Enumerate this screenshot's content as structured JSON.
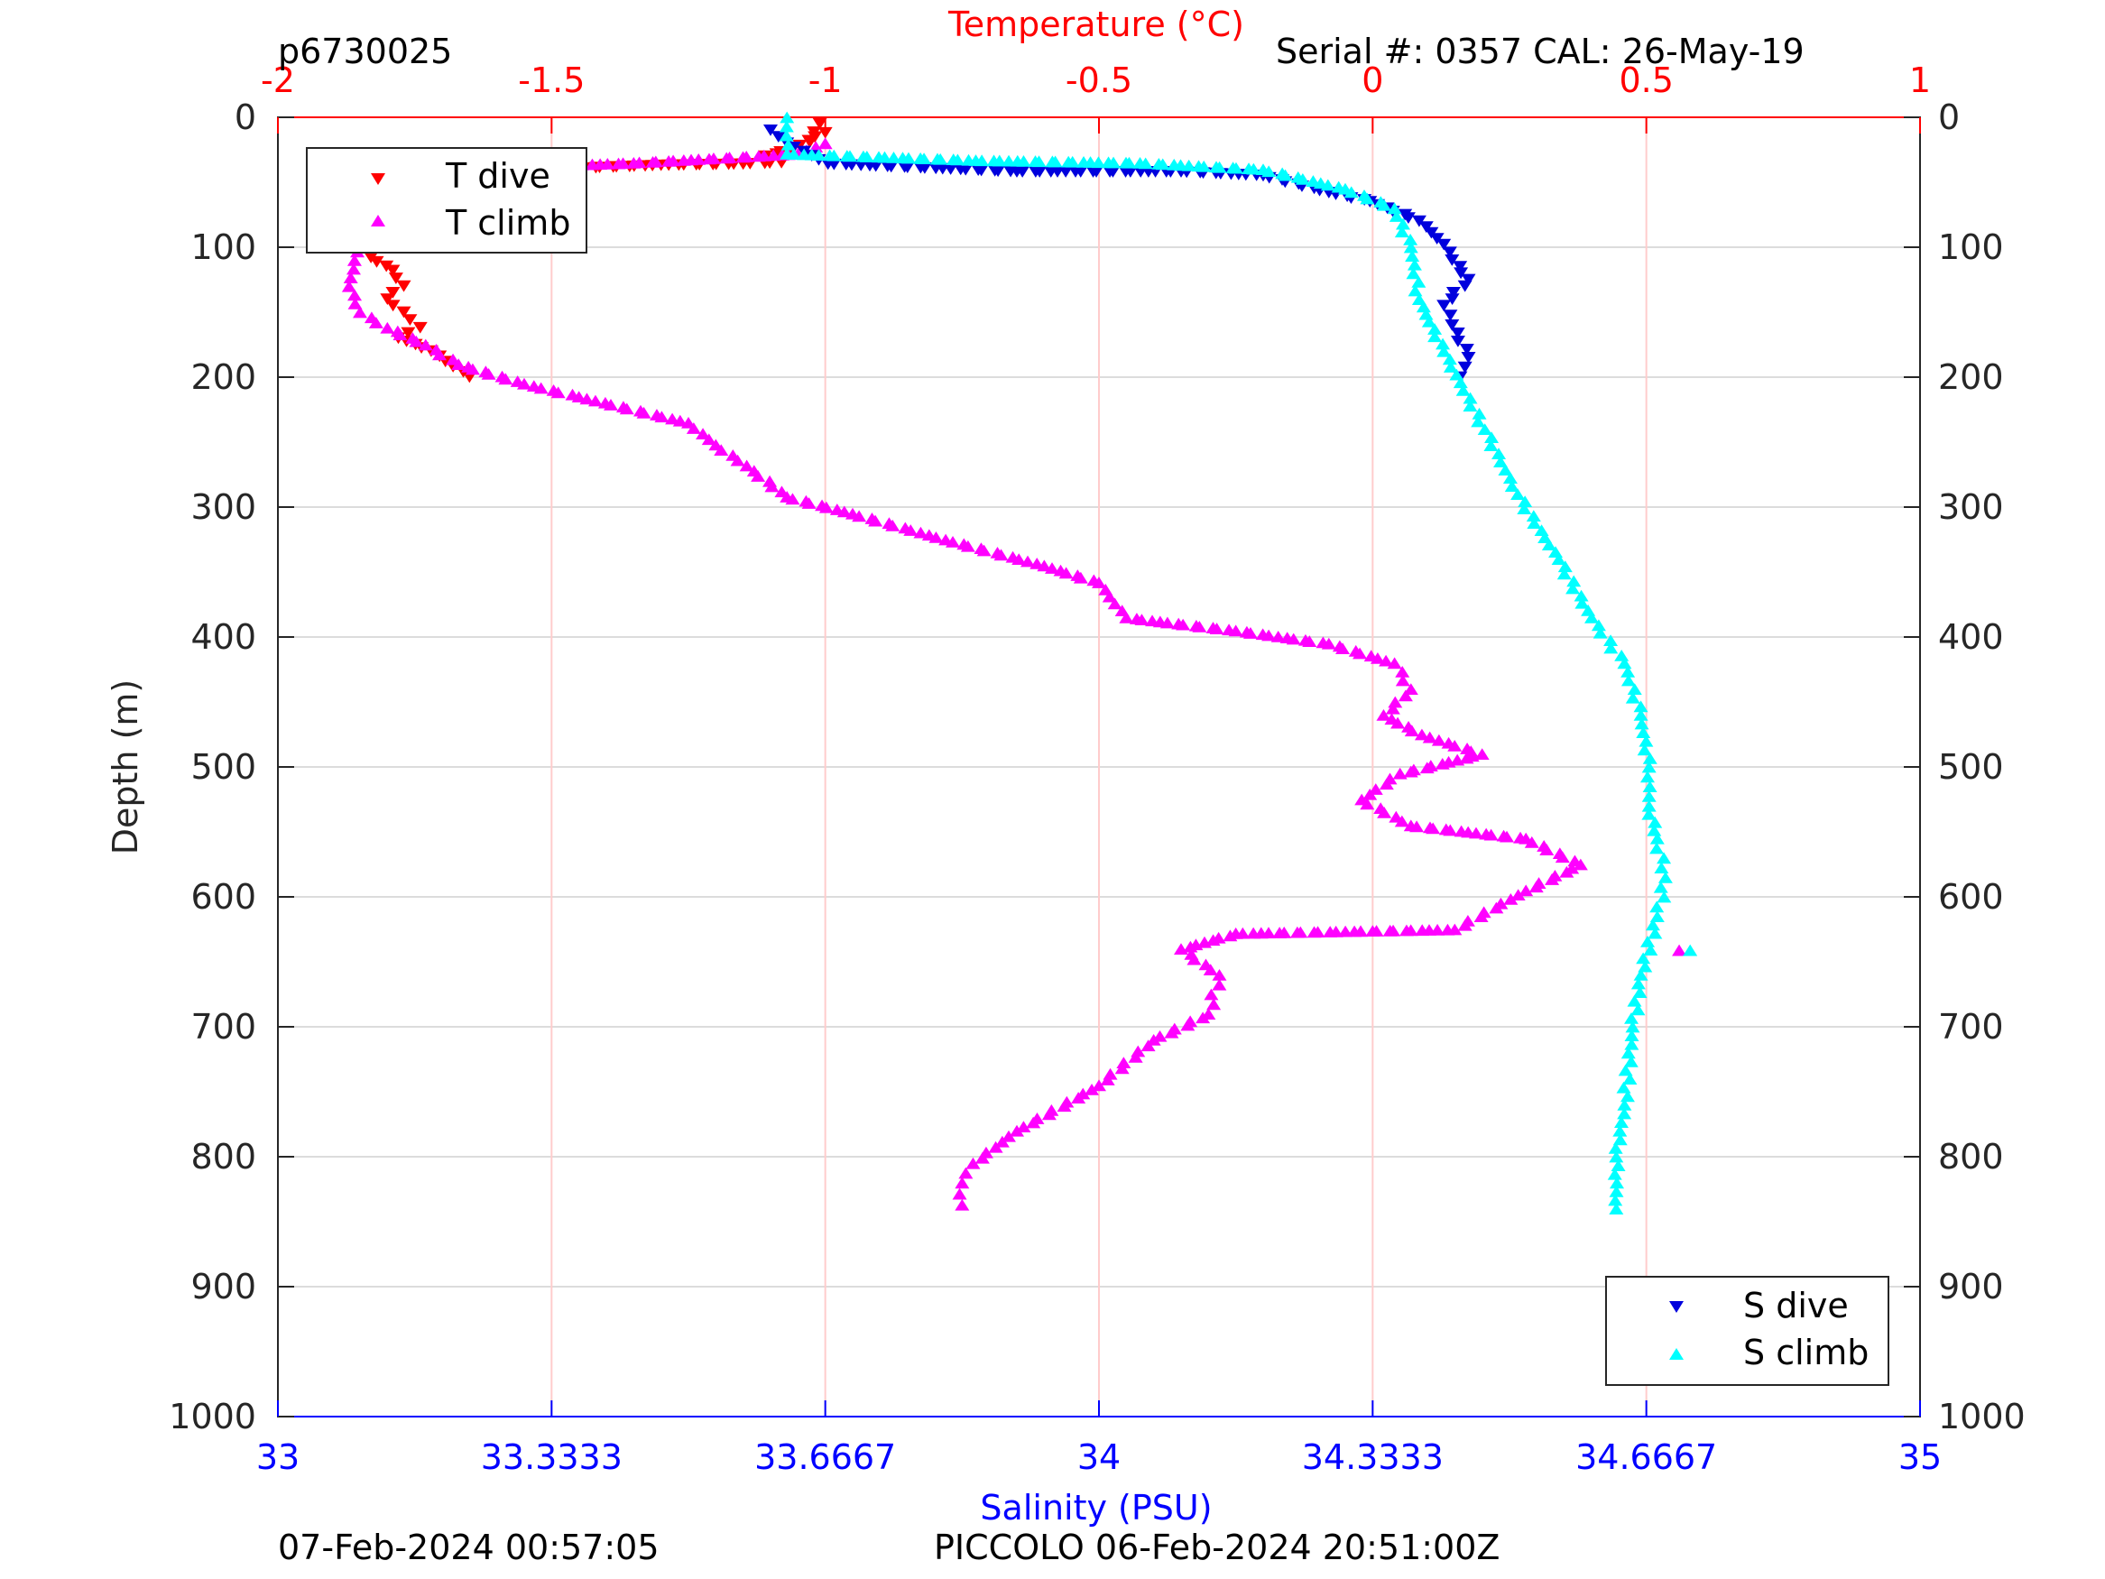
{
  "header": {
    "profile_id": "p6730025",
    "serial": "Serial #: 0357  CAL: 26-May-19"
  },
  "footer": {
    "left": "07-Feb-2024 00:57:05",
    "right": "PICCOLO 06-Feb-2024 20:51:00Z"
  },
  "legend_temperature": {
    "dive": "T dive",
    "climb": "T climb"
  },
  "legend_salinity": {
    "dive": "S dive",
    "climb": "S climb"
  },
  "colors": {
    "temperature_axis": "#ff0000",
    "salinity_axis": "#0000ff",
    "t_dive": "#ff0000",
    "t_climb": "#ff00ff",
    "s_dive": "#0000dd",
    "s_climb": "#00ffff"
  },
  "chart_data": {
    "type": "scatter",
    "title": "",
    "grid": true,
    "y_axis": {
      "label": "Depth (m)",
      "range": [
        0,
        1000
      ],
      "reversed": true,
      "ticks": [
        "0",
        "100",
        "200",
        "300",
        "400",
        "500",
        "600",
        "700",
        "800",
        "900",
        "1000"
      ]
    },
    "x_axis_top": {
      "label": "Temperature (°C)",
      "range": [
        -2,
        1
      ],
      "ticks": [
        "-2",
        "-1.5",
        "-1",
        "-0.5",
        "0",
        "0.5",
        "1"
      ]
    },
    "x_axis_bottom": {
      "label": "Salinity (PSU)",
      "range": [
        33,
        35
      ],
      "ticks": [
        "33",
        "33.3333",
        "33.6667",
        "34",
        "34.3333",
        "34.6667",
        "35"
      ]
    },
    "series": [
      {
        "name": "T dive",
        "axis": "temperature",
        "marker": "triangle-down",
        "points": [
          [
            -1.03,
            18
          ],
          [
            -1.01,
            5
          ],
          [
            -1.0,
            12
          ],
          [
            -1.06,
            25
          ],
          [
            -1.11,
            30
          ],
          [
            -1.08,
            35
          ],
          [
            -1.15,
            36
          ],
          [
            -1.3,
            37
          ],
          [
            -1.5,
            40
          ],
          [
            -1.65,
            44
          ],
          [
            -1.72,
            52
          ],
          [
            -1.76,
            60
          ],
          [
            -1.8,
            70
          ],
          [
            -1.79,
            80
          ],
          [
            -1.8,
            90
          ],
          [
            -1.82,
            100
          ],
          [
            -1.83,
            108
          ],
          [
            -1.79,
            118
          ],
          [
            -1.77,
            130
          ],
          [
            -1.8,
            140
          ],
          [
            -1.77,
            150
          ],
          [
            -1.74,
            162
          ],
          [
            -1.78,
            170
          ],
          [
            -1.72,
            180
          ],
          [
            -1.68,
            192
          ],
          [
            -1.65,
            200
          ]
        ]
      },
      {
        "name": "T climb",
        "axis": "temperature",
        "marker": "triangle-up",
        "points": [
          [
            -1.0,
            20
          ],
          [
            -1.05,
            28
          ],
          [
            -1.35,
            35
          ],
          [
            -1.55,
            38
          ],
          [
            -1.7,
            50
          ],
          [
            -1.8,
            62
          ],
          [
            -1.83,
            75
          ],
          [
            -1.85,
            90
          ],
          [
            -1.86,
            110
          ],
          [
            -1.87,
            130
          ],
          [
            -1.85,
            150
          ],
          [
            -1.8,
            162
          ],
          [
            -1.73,
            175
          ],
          [
            -1.67,
            190
          ],
          [
            -1.55,
            205
          ],
          [
            -1.45,
            215
          ],
          [
            -1.25,
            235
          ],
          [
            -1.2,
            252
          ],
          [
            -1.13,
            272
          ],
          [
            -1.07,
            292
          ],
          [
            -0.95,
            305
          ],
          [
            -0.78,
            325
          ],
          [
            -0.6,
            345
          ],
          [
            -0.5,
            358
          ],
          [
            -0.45,
            385
          ],
          [
            -0.25,
            395
          ],
          [
            -0.08,
            405
          ],
          [
            0.04,
            420
          ],
          [
            0.07,
            440
          ],
          [
            0.02,
            460
          ],
          [
            0.09,
            475
          ],
          [
            0.2,
            490
          ],
          [
            0.05,
            505
          ],
          [
            -0.02,
            525
          ],
          [
            0.07,
            545
          ],
          [
            0.28,
            555
          ],
          [
            0.38,
            575
          ],
          [
            0.28,
            595
          ],
          [
            0.15,
            625
          ],
          [
            -0.25,
            628
          ],
          [
            -0.35,
            640
          ],
          [
            -0.28,
            660
          ],
          [
            -0.3,
            690
          ],
          [
            -0.4,
            710
          ],
          [
            -0.5,
            745
          ],
          [
            -0.65,
            780
          ],
          [
            -0.73,
            805
          ],
          [
            -0.75,
            820
          ],
          [
            -0.75,
            837
          ],
          [
            0.56,
            641
          ]
        ]
      },
      {
        "name": "S dive",
        "axis": "salinity",
        "marker": "triangle-down",
        "points": [
          [
            33.6,
            10
          ],
          [
            33.62,
            20
          ],
          [
            33.67,
            36
          ],
          [
            33.9,
            42
          ],
          [
            34.1,
            42
          ],
          [
            34.2,
            45
          ],
          [
            34.28,
            58
          ],
          [
            34.33,
            65
          ],
          [
            34.39,
            80
          ],
          [
            34.42,
            98
          ],
          [
            34.43,
            110
          ],
          [
            34.45,
            125
          ],
          [
            34.42,
            145
          ],
          [
            34.43,
            160
          ],
          [
            34.45,
            185
          ],
          [
            34.44,
            200
          ]
        ]
      },
      {
        "name": "S climb",
        "axis": "salinity",
        "marker": "triangle-up",
        "points": [
          [
            33.62,
            0
          ],
          [
            33.62,
            28
          ],
          [
            33.85,
            33
          ],
          [
            34.05,
            35
          ],
          [
            34.2,
            40
          ],
          [
            34.3,
            55
          ],
          [
            34.36,
            70
          ],
          [
            34.38,
            100
          ],
          [
            34.39,
            140
          ],
          [
            34.42,
            180
          ],
          [
            34.47,
            240
          ],
          [
            34.51,
            290
          ],
          [
            34.56,
            340
          ],
          [
            34.6,
            385
          ],
          [
            34.64,
            420
          ],
          [
            34.66,
            460
          ],
          [
            34.67,
            500
          ],
          [
            34.67,
            530
          ],
          [
            34.68,
            555
          ],
          [
            34.69,
            585
          ],
          [
            34.68,
            615
          ],
          [
            34.66,
            660
          ],
          [
            34.65,
            700
          ],
          [
            34.64,
            760
          ],
          [
            34.63,
            800
          ],
          [
            34.63,
            840
          ],
          [
            34.72,
            641
          ]
        ]
      }
    ]
  }
}
